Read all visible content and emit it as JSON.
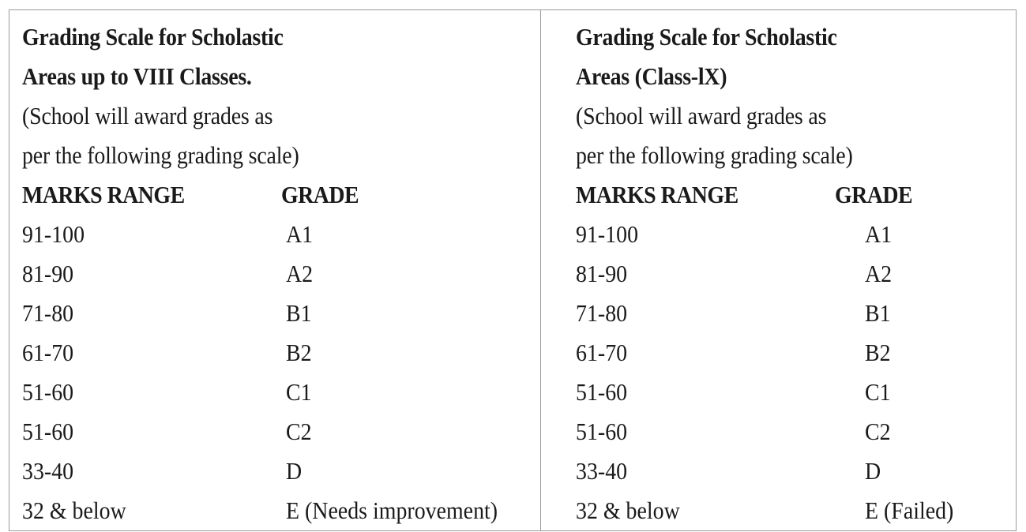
{
  "left_table": {
    "title_line1": "Grading Scale for Scholastic",
    "title_line2": "Areas up to VIII Classes.",
    "note_line1": "(School will award grades as",
    "note_line2": "per the following grading scale)",
    "col_marks": "MARKS RANGE",
    "col_grade": "GRADE",
    "rows": [
      {
        "marks": "91-100",
        "grade": "A1"
      },
      {
        "marks": "81-90",
        "grade": "A2"
      },
      {
        "marks": "71-80",
        "grade": "B1"
      },
      {
        "marks": "61-70",
        "grade": "B2"
      },
      {
        "marks": "51-60",
        "grade": "C1"
      },
      {
        "marks": "51-60",
        "grade": "C2"
      },
      {
        "marks": "33-40",
        "grade": "D"
      },
      {
        "marks": "32 & below",
        "grade": "E (Needs improvement)"
      }
    ]
  },
  "right_table": {
    "title_line1": "Grading Scale for Scholastic",
    "title_line2": "Areas (Class-lX)",
    "note_line1": "(School will award grades as",
    "note_line2": "per the following grading scale)",
    "col_marks": "MARKS RANGE",
    "col_grade": "GRADE",
    "rows": [
      {
        "marks": "91-100",
        "grade": "A1"
      },
      {
        "marks": "81-90",
        "grade": "A2"
      },
      {
        "marks": "71-80",
        "grade": "B1"
      },
      {
        "marks": "61-70",
        "grade": "B2"
      },
      {
        "marks": "51-60",
        "grade": "C1"
      },
      {
        "marks": "51-60",
        "grade": "C2"
      },
      {
        "marks": "33-40",
        "grade": "D"
      },
      {
        "marks": "32 & below",
        "grade": "E (Failed)"
      }
    ]
  }
}
